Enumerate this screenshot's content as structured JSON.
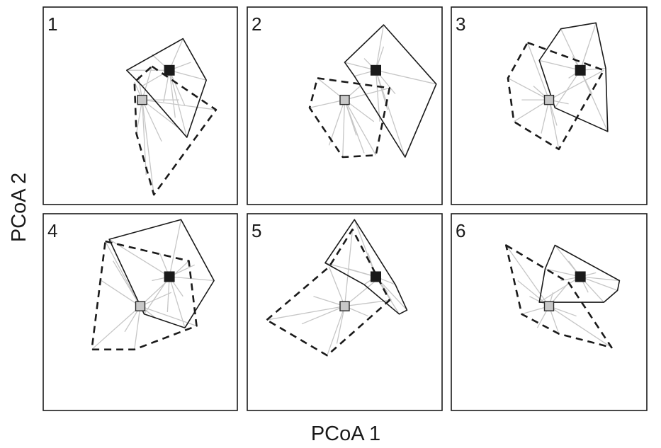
{
  "chart_data": {
    "type": "scatter",
    "xlabel": "PCoA 1",
    "ylabel": "PCoA 2",
    "xlim": [
      0,
      10
    ],
    "ylim": [
      0,
      10
    ],
    "grid": false,
    "legend": "none",
    "colors": {
      "group_a": "#1a1a1a",
      "group_b": "#c8c8c8",
      "spokes": "#c6c6c6"
    },
    "panels": [
      {
        "label": "1",
        "groups": [
          {
            "group": "a",
            "hull": "solid",
            "centroid": [
              6.5,
              6.8
            ],
            "hull_points": [
              [
                4.3,
                6.8
              ],
              [
                7.2,
                8.4
              ],
              [
                8.4,
                6.3
              ],
              [
                7.4,
                3.4
              ],
              [
                5.1,
                6.0
              ]
            ],
            "points": [
              [
                4.3,
                6.8
              ],
              [
                7.2,
                8.4
              ],
              [
                8.4,
                6.3
              ],
              [
                7.4,
                3.4
              ],
              [
                5.1,
                6.0
              ],
              [
                6.8,
                4.4
              ],
              [
                7.6,
                7.2
              ],
              [
                5.6,
                7.6
              ],
              [
                6.2,
                5.2
              ],
              [
                7.3,
                5.0
              ]
            ]
          },
          {
            "group": "b",
            "hull": "dashed",
            "centroid": [
              5.1,
              5.3
            ],
            "hull_points": [
              [
                5.6,
                7.0
              ],
              [
                8.9,
                4.8
              ],
              [
                5.7,
                0.5
              ],
              [
                4.8,
                3.6
              ],
              [
                4.7,
                6.2
              ]
            ],
            "points": [
              [
                5.6,
                7.0
              ],
              [
                8.9,
                4.8
              ],
              [
                5.7,
                0.5
              ],
              [
                4.8,
                3.6
              ],
              [
                4.7,
                6.2
              ],
              [
                5.3,
                1.5
              ],
              [
                6.1,
                3.2
              ],
              [
                7.2,
                3.7
              ],
              [
                7.0,
                5.3
              ],
              [
                4.9,
                6.5
              ]
            ]
          }
        ]
      },
      {
        "label": "2",
        "groups": [
          {
            "group": "a",
            "hull": "solid",
            "centroid": [
              6.6,
              6.8
            ],
            "hull_points": [
              [
                5.0,
                7.2
              ],
              [
                7.0,
                9.1
              ],
              [
                9.7,
                6.1
              ],
              [
                8.1,
                2.4
              ],
              [
                5.5,
                6.5
              ]
            ],
            "points": [
              [
                5.0,
                7.2
              ],
              [
                7.0,
                9.1
              ],
              [
                9.7,
                6.1
              ],
              [
                8.1,
                2.4
              ],
              [
                5.5,
                6.5
              ],
              [
                6.8,
                4.2
              ],
              [
                7.2,
                4.8
              ],
              [
                7.0,
                8.0
              ],
              [
                7.6,
                5.6
              ],
              [
                6.0,
                7.4
              ]
            ]
          },
          {
            "group": "b",
            "hull": "dashed",
            "centroid": [
              5.0,
              5.3
            ],
            "hull_points": [
              [
                3.6,
                6.4
              ],
              [
                7.3,
                5.9
              ],
              [
                6.6,
                2.5
              ],
              [
                4.9,
                2.4
              ],
              [
                3.2,
                4.9
              ]
            ],
            "points": [
              [
                3.6,
                6.4
              ],
              [
                7.3,
                5.9
              ],
              [
                6.6,
                2.5
              ],
              [
                4.9,
                2.4
              ],
              [
                3.2,
                4.9
              ],
              [
                6.0,
                2.6
              ],
              [
                5.6,
                3.5
              ],
              [
                4.2,
                3.0
              ],
              [
                6.5,
                4.2
              ],
              [
                5.8,
                6.0
              ]
            ]
          }
        ]
      },
      {
        "label": "3",
        "groups": [
          {
            "group": "a",
            "hull": "solid",
            "centroid": [
              6.6,
              6.8
            ],
            "hull_points": [
              [
                4.5,
                7.3
              ],
              [
                5.6,
                8.9
              ],
              [
                7.4,
                9.2
              ],
              [
                7.9,
                6.9
              ],
              [
                8.0,
                3.7
              ],
              [
                5.3,
                4.9
              ]
            ],
            "points": [
              [
                4.5,
                7.3
              ],
              [
                5.6,
                8.9
              ],
              [
                7.4,
                9.2
              ],
              [
                7.9,
                6.9
              ],
              [
                8.0,
                3.7
              ],
              [
                5.3,
                4.9
              ],
              [
                6.2,
                7.5
              ],
              [
                7.2,
                5.6
              ],
              [
                6.0,
                6.4
              ],
              [
                7.0,
                8.0
              ]
            ]
          },
          {
            "group": "b",
            "hull": "dashed",
            "centroid": [
              5.0,
              5.3
            ],
            "hull_points": [
              [
                3.9,
                8.2
              ],
              [
                7.8,
                6.8
              ],
              [
                5.5,
                2.8
              ],
              [
                3.2,
                4.2
              ],
              [
                2.9,
                6.4
              ]
            ],
            "points": [
              [
                3.9,
                8.2
              ],
              [
                7.8,
                6.8
              ],
              [
                5.5,
                2.8
              ],
              [
                3.2,
                4.2
              ],
              [
                2.9,
                6.4
              ],
              [
                4.6,
                3.6
              ],
              [
                5.4,
                4.0
              ],
              [
                3.6,
                5.3
              ],
              [
                4.2,
                6.0
              ],
              [
                6.0,
                5.1
              ]
            ]
          }
        ]
      },
      {
        "label": "4",
        "groups": [
          {
            "group": "a",
            "hull": "solid",
            "centroid": [
              6.5,
              6.8
            ],
            "hull_points": [
              [
                3.4,
                8.7
              ],
              [
                7.1,
                9.7
              ],
              [
                8.8,
                6.6
              ],
              [
                7.3,
                4.2
              ],
              [
                5.2,
                4.9
              ]
            ],
            "points": [
              [
                3.4,
                8.7
              ],
              [
                7.1,
                9.7
              ],
              [
                8.8,
                6.6
              ],
              [
                7.3,
                4.2
              ],
              [
                5.2,
                4.9
              ],
              [
                6.0,
                8.0
              ],
              [
                7.8,
                7.4
              ],
              [
                6.4,
                5.0
              ],
              [
                7.2,
                5.8
              ],
              [
                5.6,
                6.6
              ]
            ]
          },
          {
            "group": "b",
            "hull": "dashed",
            "centroid": [
              5.0,
              5.3
            ],
            "hull_points": [
              [
                3.2,
                8.6
              ],
              [
                7.5,
                7.6
              ],
              [
                7.9,
                4.3
              ],
              [
                4.7,
                3.1
              ],
              [
                2.5,
                3.1
              ]
            ],
            "points": [
              [
                3.2,
                8.6
              ],
              [
                7.5,
                7.6
              ],
              [
                7.9,
                4.3
              ],
              [
                4.7,
                3.1
              ],
              [
                2.5,
                3.1
              ],
              [
                4.2,
                4.0
              ],
              [
                3.0,
                6.6
              ],
              [
                5.8,
                4.7
              ],
              [
                6.6,
                6.0
              ],
              [
                3.6,
                7.6
              ]
            ]
          }
        ]
      },
      {
        "label": "5",
        "groups": [
          {
            "group": "a",
            "hull": "solid",
            "centroid": [
              6.6,
              6.8
            ],
            "hull_points": [
              [
                4.0,
                7.5
              ],
              [
                5.5,
                9.7
              ],
              [
                7.6,
                6.4
              ],
              [
                8.2,
                5.1
              ],
              [
                7.8,
                4.9
              ],
              [
                6.0,
                6.4
              ]
            ],
            "points": [
              [
                4.0,
                7.5
              ],
              [
                5.5,
                9.7
              ],
              [
                7.6,
                6.4
              ],
              [
                8.2,
                5.1
              ],
              [
                7.8,
                4.9
              ],
              [
                6.0,
                6.4
              ],
              [
                7.2,
                6.0
              ],
              [
                5.2,
                7.2
              ],
              [
                6.2,
                8.0
              ],
              [
                7.4,
                5.6
              ]
            ]
          },
          {
            "group": "b",
            "hull": "dashed",
            "centroid": [
              5.0,
              5.3
            ],
            "hull_points": [
              [
                1.0,
                4.6
              ],
              [
                4.2,
                7.3
              ],
              [
                5.4,
                9.2
              ],
              [
                7.3,
                5.6
              ],
              [
                4.1,
                2.8
              ]
            ],
            "points": [
              [
                1.0,
                4.6
              ],
              [
                4.2,
                7.3
              ],
              [
                5.4,
                9.2
              ],
              [
                7.3,
                5.6
              ],
              [
                4.1,
                2.8
              ],
              [
                2.8,
                4.4
              ],
              [
                4.6,
                3.4
              ],
              [
                6.2,
                4.8
              ],
              [
                3.4,
                5.8
              ],
              [
                6.6,
                6.6
              ]
            ]
          }
        ]
      },
      {
        "label": "6",
        "groups": [
          {
            "group": "a",
            "hull": "solid",
            "centroid": [
              6.6,
              6.8
            ],
            "hull_points": [
              [
                4.5,
                5.5
              ],
              [
                4.8,
                7.2
              ],
              [
                5.3,
                8.4
              ],
              [
                8.6,
                6.6
              ],
              [
                8.5,
                6.1
              ],
              [
                7.8,
                5.5
              ]
            ],
            "points": [
              [
                4.5,
                5.5
              ],
              [
                4.8,
                7.2
              ],
              [
                5.3,
                8.4
              ],
              [
                8.6,
                6.6
              ],
              [
                8.5,
                6.1
              ],
              [
                7.8,
                5.5
              ],
              [
                7.0,
                6.0
              ],
              [
                5.6,
                6.6
              ],
              [
                6.0,
                7.6
              ],
              [
                7.4,
                7.0
              ]
            ]
          },
          {
            "group": "b",
            "hull": "dashed",
            "centroid": [
              5.0,
              5.3
            ],
            "hull_points": [
              [
                2.8,
                8.4
              ],
              [
                6.0,
                6.5
              ],
              [
                8.2,
                3.2
              ],
              [
                5.5,
                3.9
              ],
              [
                3.6,
                4.9
              ]
            ],
            "points": [
              [
                2.8,
                8.4
              ],
              [
                6.0,
                6.5
              ],
              [
                8.2,
                3.2
              ],
              [
                5.5,
                3.9
              ],
              [
                3.6,
                4.9
              ],
              [
                4.4,
                4.2
              ],
              [
                3.4,
                6.6
              ],
              [
                6.4,
                4.8
              ],
              [
                4.0,
                5.8
              ],
              [
                5.2,
                6.0
              ]
            ]
          }
        ]
      }
    ]
  }
}
